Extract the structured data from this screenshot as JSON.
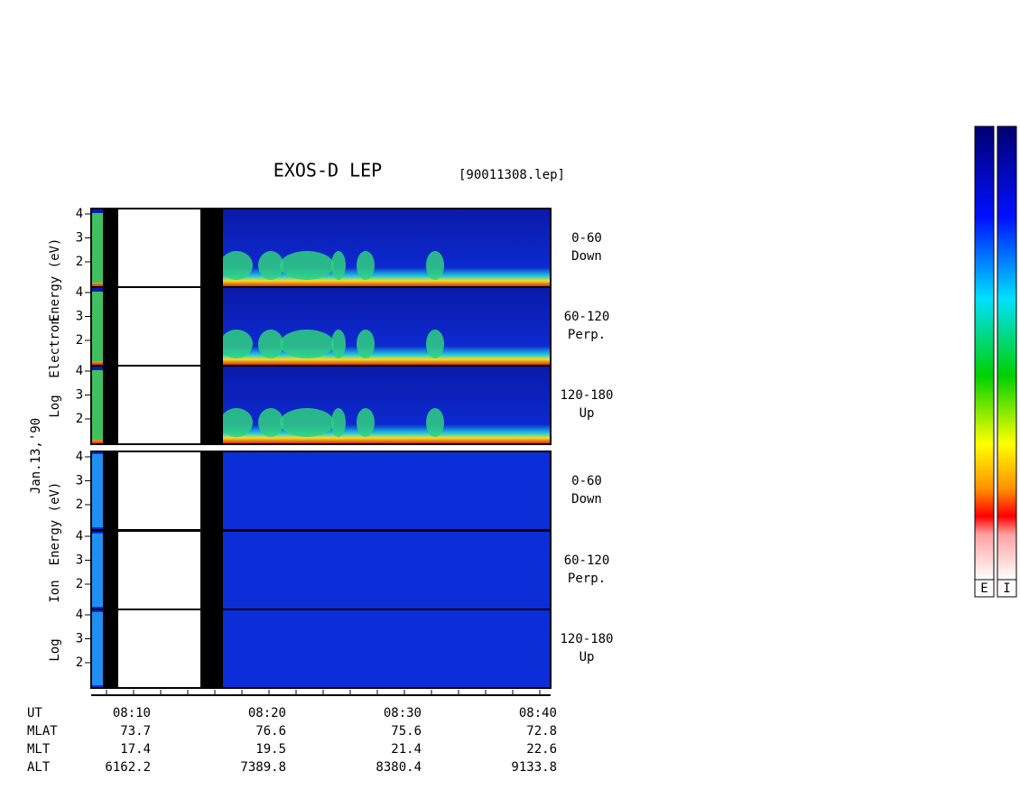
{
  "title": "EXOS-D LEP",
  "file": "[90011308.lep]",
  "date": "Jan.13,'90",
  "electron_label": [
    "Log",
    "Electron",
    "Energy (eV)"
  ],
  "ion_label": [
    "Log",
    "Ion",
    "Energy (eV)"
  ],
  "panels": [
    {
      "energy_ticks": [
        "4",
        "3",
        "2"
      ],
      "angle": "0-60",
      "direction": "Down"
    },
    {
      "energy_ticks": [
        "4",
        "3",
        "2"
      ],
      "angle": "60-120",
      "direction": "Perp."
    },
    {
      "energy_ticks": [
        "4",
        "3",
        "2"
      ],
      "angle": "120-180",
      "direction": "Up"
    },
    {
      "energy_ticks": [
        "4",
        "3",
        "2"
      ],
      "angle": "0-60",
      "direction": "Down"
    },
    {
      "energy_ticks": [
        "4",
        "3",
        "2"
      ],
      "angle": "60-120",
      "direction": "Perp."
    },
    {
      "energy_ticks": [
        "4",
        "3",
        "2"
      ],
      "angle": "120-180",
      "direction": "Up"
    }
  ],
  "time_axis": [
    {
      "name": "UT",
      "values": [
        "08:10",
        "08:20",
        "08:30",
        "08:40"
      ]
    },
    {
      "name": "MLAT",
      "values": [
        "73.7",
        "76.6",
        "75.6",
        "72.8"
      ]
    },
    {
      "name": "MLT",
      "values": [
        "17.4",
        "19.5",
        "21.4",
        "22.6"
      ]
    },
    {
      "name": "ALT",
      "values": [
        "6162.2",
        "7389.8",
        "8380.4",
        "9133.8"
      ]
    }
  ],
  "colorbars": [
    "E",
    "I"
  ]
}
